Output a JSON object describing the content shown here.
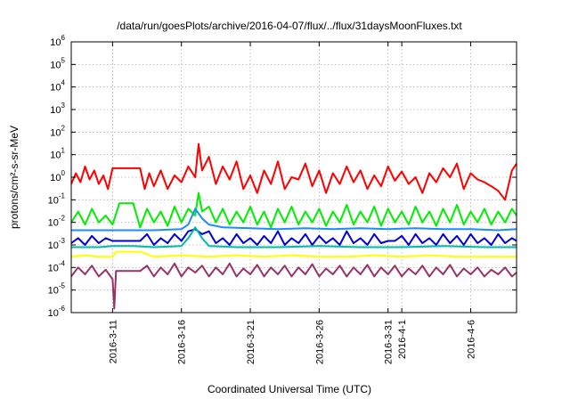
{
  "chart_data": {
    "type": "line",
    "title": "/data/run/goesPlots/archive/2016-04-07/flux/../flux/31daysMoonFluxes.txt",
    "xlabel": "Coordinated Universal Time (UTC)",
    "ylabel": "protons/cm²-s-sr-MeV",
    "yscale": "log",
    "ylim": [
      1e-06,
      1000000.0
    ],
    "xlim": [
      "2016-03-08T00:00",
      "2016-04-09T08:00"
    ],
    "grid": true,
    "x_ticks": [
      {
        "date": "2016-03-11",
        "label": "2016-3-11"
      },
      {
        "date": "2016-03-16",
        "label": "2016-3-16"
      },
      {
        "date": "2016-03-21",
        "label": "2016-3-21"
      },
      {
        "date": "2016-03-26",
        "label": "2016-3-26"
      },
      {
        "date": "2016-03-31",
        "label": "2016-3-31"
      },
      {
        "date": "2016-04-01",
        "label": "2016-4-1"
      },
      {
        "date": "2016-04-06",
        "label": "2016-4-6"
      }
    ],
    "y_ticks": [
      {
        "value": 1e-06,
        "base": "10",
        "exp": "-6"
      },
      {
        "value": 1e-05,
        "base": "10",
        "exp": "-5"
      },
      {
        "value": 0.0001,
        "base": "10",
        "exp": "-4"
      },
      {
        "value": 0.001,
        "base": "10",
        "exp": "-3"
      },
      {
        "value": 0.01,
        "base": "10",
        "exp": "-2"
      },
      {
        "value": 0.1,
        "base": "10",
        "exp": "-1"
      },
      {
        "value": 1.0,
        "base": "10",
        "exp": "0"
      },
      {
        "value": 10.0,
        "base": "10",
        "exp": "1"
      },
      {
        "value": 100.0,
        "base": "10",
        "exp": "2"
      },
      {
        "value": 1000.0,
        "base": "10",
        "exp": "3"
      },
      {
        "value": 10000.0,
        "base": "10",
        "exp": "4"
      },
      {
        "value": 100000.0,
        "base": "10",
        "exp": "5"
      },
      {
        "value": 1000000.0,
        "base": "10",
        "exp": "6"
      }
    ],
    "series": [
      {
        "color": "#ff0000",
        "x": [
          "2016-03-08T00:00",
          "2016-03-08T08:00",
          "2016-03-08T16:00",
          "2016-03-09T00:00",
          "2016-03-09T08:00",
          "2016-03-09T16:00",
          "2016-03-10T00:00",
          "2016-03-10T08:00",
          "2016-03-10T16:00",
          "2016-03-11T00:00",
          "2016-03-12T00:00",
          "2016-03-13T00:00",
          "2016-03-13T08:00",
          "2016-03-13T16:00",
          "2016-03-14T00:00",
          "2016-03-14T12:00",
          "2016-03-15T00:00",
          "2016-03-15T12:00",
          "2016-03-16T00:00",
          "2016-03-16T12:00",
          "2016-03-17T00:00",
          "2016-03-17T06:00",
          "2016-03-17T12:00",
          "2016-03-18T00:00",
          "2016-03-18T12:00",
          "2016-03-19T00:00",
          "2016-03-19T12:00",
          "2016-03-20T00:00",
          "2016-03-20T12:00",
          "2016-03-21T00:00",
          "2016-03-21T12:00",
          "2016-03-22T00:00",
          "2016-03-22T12:00",
          "2016-03-23T00:00",
          "2016-03-23T12:00",
          "2016-03-24T00:00",
          "2016-03-24T12:00",
          "2016-03-25T00:00",
          "2016-03-25T12:00",
          "2016-03-26T00:00",
          "2016-03-26T12:00",
          "2016-03-27T00:00",
          "2016-03-27T12:00",
          "2016-03-28T00:00",
          "2016-03-28T12:00",
          "2016-03-29T00:00",
          "2016-03-29T12:00",
          "2016-03-30T00:00",
          "2016-03-30T12:00",
          "2016-03-31T00:00",
          "2016-03-31T12:00",
          "2016-04-01T00:00",
          "2016-04-01T12:00",
          "2016-04-02T00:00",
          "2016-04-02T12:00",
          "2016-04-03T00:00",
          "2016-04-03T12:00",
          "2016-04-04T00:00",
          "2016-04-04T12:00",
          "2016-04-05T00:00",
          "2016-04-05T12:00",
          "2016-04-06T00:00",
          "2016-04-06T12:00",
          "2016-04-07T00:00",
          "2016-04-07T12:00",
          "2016-04-08T00:00",
          "2016-04-08T12:00",
          "2016-04-09T00:00",
          "2016-04-09T08:00"
        ],
        "y": [
          0.5,
          1.5,
          0.6,
          3,
          0.8,
          2,
          0.5,
          1.2,
          0.3,
          2.5,
          2.5,
          2.5,
          0.3,
          1.5,
          0.4,
          2,
          0.3,
          1.2,
          0.6,
          3,
          1,
          30,
          2,
          8,
          0.5,
          3,
          0.8,
          5,
          0.3,
          1.2,
          0.2,
          2,
          0.5,
          5,
          0.3,
          1,
          0.8,
          4,
          0.4,
          2,
          0.2,
          1.5,
          0.5,
          3,
          0.6,
          2,
          0.3,
          1.2,
          0.4,
          3,
          0.7,
          1.8,
          0.5,
          1,
          0.2,
          1.5,
          0.6,
          2.5,
          1,
          4,
          0.3,
          1.5,
          0.8,
          0.6,
          0.4,
          0.25,
          0.1,
          2,
          4
        ]
      },
      {
        "color": "#00ee00",
        "x": [
          "2016-03-08T00:00",
          "2016-03-08T12:00",
          "2016-03-09T00:00",
          "2016-03-09T12:00",
          "2016-03-10T00:00",
          "2016-03-10T12:00",
          "2016-03-11T00:00",
          "2016-03-11T12:00",
          "2016-03-12T00:00",
          "2016-03-12T12:00",
          "2016-03-13T00:00",
          "2016-03-13T12:00",
          "2016-03-14T00:00",
          "2016-03-14T12:00",
          "2016-03-15T00:00",
          "2016-03-15T12:00",
          "2016-03-16T00:00",
          "2016-03-16T12:00",
          "2016-03-17T00:00",
          "2016-03-17T06:00",
          "2016-03-17T12:00",
          "2016-03-18T00:00",
          "2016-03-18T12:00",
          "2016-03-19T00:00",
          "2016-03-19T12:00",
          "2016-03-20T00:00",
          "2016-03-20T12:00",
          "2016-03-21T00:00",
          "2016-03-21T12:00",
          "2016-03-22T00:00",
          "2016-03-22T12:00",
          "2016-03-23T00:00",
          "2016-03-23T12:00",
          "2016-03-24T00:00",
          "2016-03-24T12:00",
          "2016-03-25T00:00",
          "2016-03-25T12:00",
          "2016-03-26T00:00",
          "2016-03-26T12:00",
          "2016-03-27T00:00",
          "2016-03-27T12:00",
          "2016-03-28T00:00",
          "2016-03-28T12:00",
          "2016-03-29T00:00",
          "2016-03-29T12:00",
          "2016-03-30T00:00",
          "2016-03-30T12:00",
          "2016-03-31T00:00",
          "2016-03-31T12:00",
          "2016-04-01T00:00",
          "2016-04-01T12:00",
          "2016-04-02T00:00",
          "2016-04-02T12:00",
          "2016-04-03T00:00",
          "2016-04-03T12:00",
          "2016-04-04T00:00",
          "2016-04-04T12:00",
          "2016-04-05T00:00",
          "2016-04-05T12:00",
          "2016-04-06T00:00",
          "2016-04-06T12:00",
          "2016-04-07T00:00",
          "2016-04-07T12:00",
          "2016-04-08T00:00",
          "2016-04-08T12:00",
          "2016-04-09T00:00",
          "2016-04-09T08:00"
        ],
        "y": [
          0.01,
          0.03,
          0.008,
          0.04,
          0.01,
          0.02,
          0.008,
          0.07,
          0.07,
          0.07,
          0.006,
          0.04,
          0.01,
          0.03,
          0.007,
          0.05,
          0.01,
          0.04,
          0.02,
          0.2,
          0.03,
          0.05,
          0.01,
          0.04,
          0.008,
          0.03,
          0.01,
          0.05,
          0.008,
          0.03,
          0.006,
          0.04,
          0.01,
          0.05,
          0.008,
          0.03,
          0.01,
          0.04,
          0.007,
          0.03,
          0.01,
          0.06,
          0.008,
          0.03,
          0.01,
          0.05,
          0.007,
          0.04,
          0.01,
          0.03,
          0.008,
          0.05,
          0.01,
          0.03,
          0.007,
          0.04,
          0.01,
          0.06,
          0.008,
          0.03,
          0.01,
          0.04,
          0.008,
          0.03,
          0.01,
          0.04,
          0.02
        ]
      },
      {
        "color": "#1a8cff",
        "x": [
          "2016-03-08T00:00",
          "2016-03-11T00:00",
          "2016-03-14T00:00",
          "2016-03-16T00:00",
          "2016-03-16T12:00",
          "2016-03-17T00:00",
          "2016-03-17T12:00",
          "2016-03-18T00:00",
          "2016-03-19T00:00",
          "2016-03-21T00:00",
          "2016-03-23T00:00",
          "2016-03-25T00:00",
          "2016-03-27T00:00",
          "2016-03-29T00:00",
          "2016-03-31T00:00",
          "2016-04-02T00:00",
          "2016-04-04T00:00",
          "2016-04-06T00:00",
          "2016-04-08T00:00",
          "2016-04-09T08:00"
        ],
        "y": [
          0.0045,
          0.0045,
          0.0045,
          0.005,
          0.008,
          0.04,
          0.015,
          0.008,
          0.006,
          0.0055,
          0.005,
          0.0055,
          0.005,
          0.0055,
          0.005,
          0.0055,
          0.005,
          0.005,
          0.0045,
          0.005
        ]
      },
      {
        "color": "#0000dd",
        "x": [
          "2016-03-08T00:00",
          "2016-03-08T12:00",
          "2016-03-09T00:00",
          "2016-03-09T12:00",
          "2016-03-10T00:00",
          "2016-03-10T12:00",
          "2016-03-11T00:00",
          "2016-03-12T00:00",
          "2016-03-13T00:00",
          "2016-03-13T12:00",
          "2016-03-14T00:00",
          "2016-03-14T12:00",
          "2016-03-15T00:00",
          "2016-03-15T12:00",
          "2016-03-16T00:00",
          "2016-03-16T12:00",
          "2016-03-17T00:00",
          "2016-03-17T12:00",
          "2016-03-18T00:00",
          "2016-03-18T12:00",
          "2016-03-19T00:00",
          "2016-03-19T12:00",
          "2016-03-20T00:00",
          "2016-03-20T12:00",
          "2016-03-21T00:00",
          "2016-03-21T12:00",
          "2016-03-22T00:00",
          "2016-03-22T12:00",
          "2016-03-23T00:00",
          "2016-03-23T12:00",
          "2016-03-24T00:00",
          "2016-03-24T12:00",
          "2016-03-25T00:00",
          "2016-03-25T12:00",
          "2016-03-26T00:00",
          "2016-03-26T12:00",
          "2016-03-27T00:00",
          "2016-03-27T12:00",
          "2016-03-28T00:00",
          "2016-03-28T12:00",
          "2016-03-29T00:00",
          "2016-03-29T12:00",
          "2016-03-30T00:00",
          "2016-03-30T12:00",
          "2016-03-31T00:00",
          "2016-03-31T12:00",
          "2016-04-01T00:00",
          "2016-04-01T12:00",
          "2016-04-02T00:00",
          "2016-04-02T12:00",
          "2016-04-03T00:00",
          "2016-04-03T12:00",
          "2016-04-04T00:00",
          "2016-04-04T12:00",
          "2016-04-05T00:00",
          "2016-04-05T12:00",
          "2016-04-06T00:00",
          "2016-04-06T12:00",
          "2016-04-07T00:00",
          "2016-04-07T12:00",
          "2016-04-08T00:00",
          "2016-04-08T12:00",
          "2016-04-09T00:00",
          "2016-04-09T08:00"
        ],
        "y": [
          0.0012,
          0.002,
          0.001,
          0.0025,
          0.0012,
          0.002,
          0.0015,
          0.0015,
          0.0015,
          0.003,
          0.001,
          0.002,
          0.0012,
          0.003,
          0.0015,
          0.004,
          0.005,
          0.003,
          0.004,
          0.0012,
          0.002,
          0.001,
          0.003,
          0.0012,
          0.002,
          0.001,
          0.0025,
          0.0012,
          0.004,
          0.001,
          0.002,
          0.0012,
          0.003,
          0.001,
          0.0025,
          0.0012,
          0.002,
          0.001,
          0.004,
          0.0012,
          0.002,
          0.001,
          0.003,
          0.0012,
          0.0015,
          0.0015,
          0.0025,
          0.001,
          0.003,
          0.0012,
          0.002,
          0.001,
          0.003,
          0.0012,
          0.0025,
          0.001,
          0.003,
          0.0012,
          0.002,
          0.001,
          0.003,
          0.0012,
          0.002,
          0.0015
        ]
      },
      {
        "color": "#00bbaa",
        "x": [
          "2016-03-08T00:00",
          "2016-03-10T00:00",
          "2016-03-11T00:00",
          "2016-03-12T12:00",
          "2016-03-14T00:00",
          "2016-03-16T00:00",
          "2016-03-16T12:00",
          "2016-03-17T00:00",
          "2016-03-17T12:00",
          "2016-03-18T00:00",
          "2016-03-20T00:00",
          "2016-03-23T00:00",
          "2016-03-26T00:00",
          "2016-03-29T00:00",
          "2016-04-01T00:00",
          "2016-04-04T00:00",
          "2016-04-07T00:00",
          "2016-04-09T08:00"
        ],
        "y": [
          0.0008,
          0.0008,
          0.0009,
          0.0009,
          0.0008,
          0.0009,
          0.002,
          0.006,
          0.002,
          0.0009,
          0.0008,
          0.0008,
          0.0009,
          0.0008,
          0.0008,
          0.0009,
          0.0008,
          0.0008
        ]
      },
      {
        "color": "#ffff00",
        "x": [
          "2016-03-08T00:00",
          "2016-03-09T00:00",
          "2016-03-10T00:00",
          "2016-03-11T00:00",
          "2016-03-11T06:00",
          "2016-03-12T00:00",
          "2016-03-13T00:00",
          "2016-03-14T00:00",
          "2016-03-16T00:00",
          "2016-03-18T00:00",
          "2016-03-20T00:00",
          "2016-03-22T00:00",
          "2016-03-24T00:00",
          "2016-03-26T00:00",
          "2016-03-28T00:00",
          "2016-03-30T00:00",
          "2016-04-01T00:00",
          "2016-04-03T00:00",
          "2016-04-05T00:00",
          "2016-04-07T00:00",
          "2016-04-09T08:00"
        ],
        "y": [
          0.0003,
          0.00035,
          0.0003,
          0.0003,
          0.0005,
          0.0005,
          0.0005,
          0.0003,
          0.00035,
          0.0003,
          0.00035,
          0.0003,
          0.00035,
          0.0003,
          0.0003,
          0.00035,
          0.0003,
          0.00035,
          0.0003,
          0.0003,
          0.0003
        ]
      },
      {
        "color": "#993366",
        "x": [
          "2016-03-08T00:00",
          "2016-03-08T12:00",
          "2016-03-09T00:00",
          "2016-03-09T12:00",
          "2016-03-10T00:00",
          "2016-03-10T12:00",
          "2016-03-11T00:00",
          "2016-03-11T03:00",
          "2016-03-11T06:00",
          "2016-03-12T00:00",
          "2016-03-13T00:00",
          "2016-03-13T12:00",
          "2016-03-14T00:00",
          "2016-03-14T12:00",
          "2016-03-15T00:00",
          "2016-03-15T12:00",
          "2016-03-16T00:00",
          "2016-03-16T12:00",
          "2016-03-17T00:00",
          "2016-03-17T12:00",
          "2016-03-18T00:00",
          "2016-03-18T12:00",
          "2016-03-19T00:00",
          "2016-03-19T12:00",
          "2016-03-20T00:00",
          "2016-03-20T12:00",
          "2016-03-21T00:00",
          "2016-03-21T12:00",
          "2016-03-22T00:00",
          "2016-03-22T12:00",
          "2016-03-23T00:00",
          "2016-03-23T12:00",
          "2016-03-24T00:00",
          "2016-03-24T12:00",
          "2016-03-25T00:00",
          "2016-03-25T12:00",
          "2016-03-26T00:00",
          "2016-03-26T12:00",
          "2016-03-27T00:00",
          "2016-03-27T12:00",
          "2016-03-28T00:00",
          "2016-03-28T12:00",
          "2016-03-29T00:00",
          "2016-03-29T12:00",
          "2016-03-30T00:00",
          "2016-03-30T12:00",
          "2016-03-31T00:00",
          "2016-03-31T12:00",
          "2016-04-01T00:00",
          "2016-04-01T12:00",
          "2016-04-02T00:00",
          "2016-04-02T12:00",
          "2016-04-03T00:00",
          "2016-04-03T12:00",
          "2016-04-04T00:00",
          "2016-04-04T12:00",
          "2016-04-05T00:00",
          "2016-04-05T12:00",
          "2016-04-06T00:00",
          "2016-04-06T12:00",
          "2016-04-07T00:00",
          "2016-04-07T12:00",
          "2016-04-08T00:00",
          "2016-04-08T12:00",
          "2016-04-09T00:00",
          "2016-04-09T08:00"
        ],
        "y": [
          4e-05,
          0.0001,
          5e-05,
          0.00012,
          4e-05,
          8e-05,
          3e-05,
          1.5e-06,
          7e-05,
          7e-05,
          7e-05,
          0.00012,
          4e-05,
          0.0001,
          5e-05,
          0.00015,
          4e-05,
          0.0001,
          6e-05,
          0.00012,
          4e-05,
          0.0001,
          5e-05,
          0.00015,
          4e-05,
          9e-05,
          5e-05,
          0.00013,
          4e-05,
          0.0001,
          5e-05,
          0.00012,
          4e-05,
          0.0001,
          5e-05,
          0.00014,
          4e-05,
          9e-05,
          5e-05,
          0.00012,
          4e-05,
          0.0001,
          5e-05,
          0.00013,
          4e-05,
          0.0001,
          5e-05,
          0.00012,
          4e-05,
          9e-05,
          5e-05,
          0.00012,
          4e-05,
          0.0001,
          5e-05,
          0.00013,
          4e-05,
          9e-05,
          5e-05,
          0.0001,
          4e-05,
          8e-05,
          5e-05,
          0.0001,
          4e-05,
          6e-05
        ]
      }
    ]
  }
}
